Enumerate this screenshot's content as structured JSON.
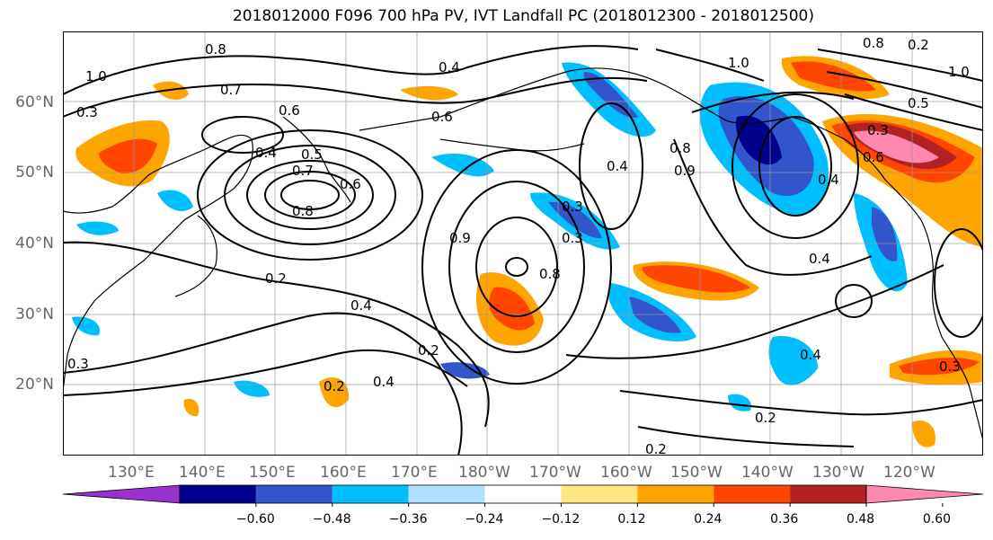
{
  "title": "2018012000 F096 700 hPa PV, IVT Landfall PC (2018012300 - 2018012500)",
  "lat_labels": [
    "60°N",
    "50°N",
    "40°N",
    "30°N",
    "20°N"
  ],
  "lon_labels": [
    "130°E",
    "140°E",
    "150°E",
    "160°E",
    "170°E",
    "180°W",
    "170°W",
    "160°W",
    "150°W",
    "140°W",
    "130°W",
    "120°W"
  ],
  "colorbar": {
    "ticks": [
      "−0.60",
      "−0.48",
      "−0.36",
      "−0.24",
      "−0.12",
      "0.12",
      "0.24",
      "0.36",
      "0.48",
      "0.60"
    ],
    "colors": [
      "#9932cc",
      "#00008b",
      "#3355cc",
      "#00bfff",
      "#b0e2ff",
      "#ffffff",
      "#ffe680",
      "#ffa500",
      "#ff4500",
      "#b22222",
      "#ff88b0"
    ]
  },
  "contour_labels": [
    "0.8",
    "0.7",
    "0.6",
    "0.4",
    "0.5",
    "0.7",
    "0.8",
    "0.6",
    "0.4",
    "0.6",
    "1.0",
    "0.8",
    "1.0",
    "0.4",
    "0.3",
    "0.9",
    "0.3",
    "0.8",
    "0.4",
    "0.2",
    "0.4",
    "0.2",
    "0.4",
    "0.2",
    "0.4",
    "0.3",
    "0.2",
    "0.3",
    "0.6",
    "0.4",
    "0.2",
    "0.3",
    "1.0",
    "0.8",
    "0.9",
    "0.5",
    "0.3",
    "0.2"
  ]
}
